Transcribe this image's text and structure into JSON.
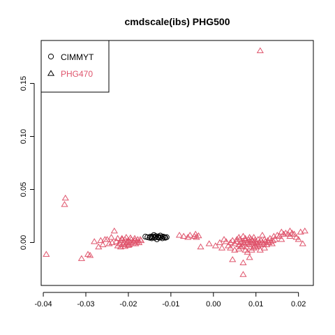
{
  "chart_data": {
    "type": "scatter",
    "title": "cmdscale(ibs) PHG500",
    "xlabel": "",
    "ylabel": "",
    "xlim": [
      -0.0405,
      0.0235
    ],
    "ylim": [
      -0.0405,
      0.1905
    ],
    "x_ticks": [
      -0.04,
      -0.03,
      -0.02,
      -0.01,
      0.0,
      0.01,
      0.02
    ],
    "x_tick_labels": [
      "-0.04",
      "-0.03",
      "-0.02",
      "-0.01",
      "0.00",
      "0.01",
      "0.02"
    ],
    "y_ticks": [
      0.0,
      0.05,
      0.1,
      0.15
    ],
    "y_tick_labels": [
      "0.00",
      "0.05",
      "0.10",
      "0.15"
    ],
    "grid": false,
    "legend": {
      "position": "top-left"
    },
    "series": [
      {
        "name": "CIMMYT",
        "marker": "circle",
        "color": "#000000",
        "points": [
          [
            -0.016,
            0.0055
          ],
          [
            -0.0155,
            0.005
          ],
          [
            -0.015,
            0.0045
          ],
          [
            -0.0148,
            0.0055
          ],
          [
            -0.0145,
            0.004
          ],
          [
            -0.0142,
            0.0055
          ],
          [
            -0.014,
            0.007
          ],
          [
            -0.0138,
            0.0045
          ],
          [
            -0.0135,
            0.006
          ],
          [
            -0.0133,
            0.003
          ],
          [
            -0.0131,
            0.005
          ],
          [
            -0.0128,
            0.0045
          ],
          [
            -0.0125,
            0.0065
          ],
          [
            -0.0123,
            0.005
          ],
          [
            -0.012,
            0.004
          ],
          [
            -0.0118,
            0.0055
          ],
          [
            -0.0115,
            0.005
          ],
          [
            -0.0113,
            0.0045
          ],
          [
            -0.011,
            0.005
          ],
          [
            -0.0145,
            0.005
          ],
          [
            -0.0137,
            0.005
          ],
          [
            -0.0129,
            0.0055
          ]
        ]
      },
      {
        "name": "PHG470",
        "marker": "triangle",
        "color": "#DF536B",
        "points": [
          [
            0.011,
            0.181
          ],
          [
            -0.0348,
            0.042
          ],
          [
            -0.035,
            0.036
          ],
          [
            -0.0393,
            -0.011
          ],
          [
            -0.031,
            -0.015
          ],
          [
            -0.0295,
            -0.011
          ],
          [
            -0.029,
            -0.012
          ],
          [
            -0.028,
            0.001
          ],
          [
            -0.027,
            -0.004
          ],
          [
            -0.0265,
            0.002
          ],
          [
            -0.026,
            -0.002
          ],
          [
            -0.0255,
            0.003
          ],
          [
            -0.025,
            0.003
          ],
          [
            -0.0245,
            -0.001
          ],
          [
            -0.024,
            0.005
          ],
          [
            -0.0238,
            0.0
          ],
          [
            -0.0233,
            0.011
          ],
          [
            -0.0228,
            0.001
          ],
          [
            -0.0225,
            0.004
          ],
          [
            -0.022,
            -0.001
          ],
          [
            -0.0218,
            0.002
          ],
          [
            -0.0215,
            0.003
          ],
          [
            -0.0212,
            -0.002
          ],
          [
            -0.021,
            0.0
          ],
          [
            -0.0208,
            0.003
          ],
          [
            -0.0205,
            -0.001
          ],
          [
            -0.0203,
            0.001
          ],
          [
            -0.02,
            0.002
          ],
          [
            -0.0198,
            -0.002
          ],
          [
            -0.0195,
            0.0
          ],
          [
            -0.0193,
            0.003
          ],
          [
            -0.019,
            -0.001
          ],
          [
            -0.0188,
            0.001
          ],
          [
            -0.0185,
            0.002
          ],
          [
            -0.0183,
            -0.001
          ],
          [
            -0.018,
            0.001
          ],
          [
            -0.0178,
            0.003
          ],
          [
            -0.0175,
            0.0
          ],
          [
            -0.0172,
            0.003
          ],
          [
            -0.017,
            0.002
          ],
          [
            -0.0215,
            0.004
          ],
          [
            -0.0205,
            0.005
          ],
          [
            -0.0195,
            0.0045
          ],
          [
            -0.0185,
            0.004
          ],
          [
            -0.0225,
            -0.003
          ],
          [
            -0.0218,
            -0.004
          ],
          [
            -0.0208,
            -0.0035
          ],
          [
            -0.02,
            -0.0025
          ],
          [
            -0.008,
            0.007
          ],
          [
            -0.007,
            0.006
          ],
          [
            -0.006,
            0.005
          ],
          [
            -0.0055,
            0.007
          ],
          [
            -0.0045,
            0.006
          ],
          [
            -0.004,
            0.005
          ],
          [
            -0.0035,
            0.0065
          ],
          [
            -0.0042,
            0.008
          ],
          [
            -0.003,
            -0.004
          ],
          [
            -0.001,
            -0.001
          ],
          [
            0.0005,
            -0.003
          ],
          [
            0.0015,
            0.0
          ],
          [
            0.002,
            -0.005
          ],
          [
            0.0025,
            0.003
          ],
          [
            0.003,
            0.001
          ],
          [
            0.0035,
            -0.003
          ],
          [
            0.004,
            0.0
          ],
          [
            0.0045,
            0.002
          ],
          [
            0.005,
            -0.001
          ],
          [
            0.0055,
            0.001
          ],
          [
            0.006,
            -0.002
          ],
          [
            0.0062,
            0.003
          ],
          [
            0.0065,
            0.0
          ],
          [
            0.0068,
            -0.003
          ],
          [
            0.007,
            0.001
          ],
          [
            0.0072,
            -0.001
          ],
          [
            0.0075,
            0.002
          ],
          [
            0.0078,
            -0.004
          ],
          [
            0.008,
            0.0
          ],
          [
            0.0082,
            0.003
          ],
          [
            0.0085,
            -0.002
          ],
          [
            0.0087,
            0.001
          ],
          [
            0.009,
            -0.001
          ],
          [
            0.0092,
            0.002
          ],
          [
            0.0095,
            0.0
          ],
          [
            0.0097,
            -0.003
          ],
          [
            0.01,
            0.001
          ],
          [
            0.0102,
            -0.001
          ],
          [
            0.0105,
            0.003
          ],
          [
            0.0107,
            0.0
          ],
          [
            0.011,
            -0.002
          ],
          [
            0.0112,
            0.002
          ],
          [
            0.0115,
            0.0
          ],
          [
            0.0118,
            -0.001
          ],
          [
            0.012,
            0.003
          ],
          [
            0.0122,
            0.001
          ],
          [
            0.0125,
            -0.002
          ],
          [
            0.0128,
            0.002
          ],
          [
            0.013,
            0.0
          ],
          [
            0.0133,
            0.004
          ],
          [
            0.0135,
            0.001
          ],
          [
            0.0138,
            -0.001
          ],
          [
            0.014,
            0.002
          ],
          [
            0.0142,
            0.006
          ],
          [
            0.0145,
            0.003
          ],
          [
            0.015,
            0.007
          ],
          [
            0.0155,
            0.006
          ],
          [
            0.016,
            0.003
          ],
          [
            0.0165,
            0.008
          ],
          [
            0.017,
            0.009
          ],
          [
            0.0175,
            0.008
          ],
          [
            0.018,
            0.006
          ],
          [
            0.0185,
            0.009
          ],
          [
            0.019,
            0.008
          ],
          [
            0.0195,
            0.005
          ],
          [
            0.02,
            0.003
          ],
          [
            0.0205,
            0.01
          ],
          [
            0.021,
            -0.001
          ],
          [
            0.0215,
            0.011
          ],
          [
            0.018,
            0.011
          ],
          [
            0.016,
            0.01
          ],
          [
            0.009,
            -0.007
          ],
          [
            0.008,
            -0.009
          ],
          [
            0.0085,
            -0.014
          ],
          [
            0.0075,
            -0.007
          ],
          [
            0.006,
            -0.006
          ],
          [
            0.005,
            -0.007
          ],
          [
            0.004,
            -0.005
          ],
          [
            0.01,
            -0.004
          ],
          [
            0.011,
            -0.007
          ],
          [
            0.012,
            -0.005
          ],
          [
            0.0045,
            -0.016
          ],
          [
            0.007,
            -0.019
          ],
          [
            0.007,
            -0.03
          ],
          [
            0.006,
            0.005
          ],
          [
            0.007,
            0.006
          ],
          [
            0.0095,
            0.005
          ],
          [
            0.0115,
            0.007
          ],
          [
            0.0075,
            0.004
          ],
          [
            0.0085,
            0.005
          ],
          [
            0.0065,
            -0.004
          ],
          [
            0.0095,
            -0.005
          ],
          [
            0.0105,
            -0.003
          ],
          [
            0.0055,
            0.003
          ],
          [
            0.0088,
            0.0035
          ],
          [
            0.0098,
            0.0025
          ]
        ]
      }
    ]
  }
}
